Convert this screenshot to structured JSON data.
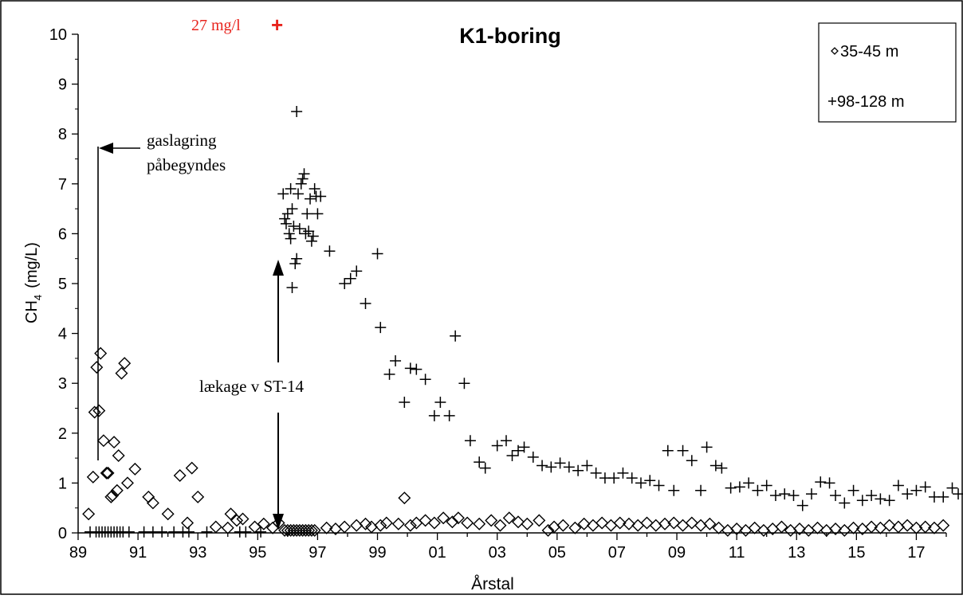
{
  "chart_data": {
    "type": "scatter",
    "title": "K1-boring",
    "xlabel": "Årstal",
    "ylabel_main": "CH",
    "ylabel_sub": "4",
    "ylabel_unit": "(mg/L)",
    "xlim": [
      89,
      118
    ],
    "ylim": [
      0,
      10
    ],
    "x_ticks": [
      89,
      91,
      93,
      95,
      97,
      99,
      101,
      103,
      105,
      107,
      109,
      111,
      113,
      115,
      117
    ],
    "x_tick_labels": [
      "89",
      "91",
      "93",
      "95",
      "97",
      "99",
      "01",
      "03",
      "05",
      "07",
      "09",
      "11",
      "13",
      "15",
      "17"
    ],
    "y_ticks": [
      0,
      1,
      2,
      3,
      4,
      5,
      6,
      7,
      8,
      9,
      10
    ],
    "y_tick_labels": [
      "0",
      "1",
      "2",
      "3",
      "4",
      "5",
      "6",
      "7",
      "8",
      "9",
      "10"
    ],
    "grid": false,
    "legend_position": "top-right",
    "series": [
      {
        "name": "35-45 m",
        "marker": "diamond",
        "points": [
          [
            89.35,
            0.38
          ],
          [
            89.5,
            1.12
          ],
          [
            89.55,
            2.42
          ],
          [
            89.62,
            3.32
          ],
          [
            89.7,
            2.45
          ],
          [
            89.75,
            3.6
          ],
          [
            89.85,
            1.85
          ],
          [
            89.95,
            1.2
          ],
          [
            90.0,
            1.2
          ],
          [
            90.1,
            0.72
          ],
          [
            90.15,
            0.75
          ],
          [
            90.2,
            1.82
          ],
          [
            90.3,
            0.85
          ],
          [
            90.35,
            1.55
          ],
          [
            90.45,
            3.2
          ],
          [
            90.55,
            3.4
          ],
          [
            90.65,
            1.0
          ],
          [
            90.9,
            1.28
          ],
          [
            91.35,
            0.72
          ],
          [
            91.5,
            0.6
          ],
          [
            92.0,
            0.38
          ],
          [
            92.4,
            1.15
          ],
          [
            92.65,
            0.2
          ],
          [
            92.8,
            1.3
          ],
          [
            93.0,
            0.72
          ],
          [
            93.6,
            0.12
          ],
          [
            94.0,
            0.1
          ],
          [
            94.1,
            0.38
          ],
          [
            94.3,
            0.25
          ],
          [
            94.5,
            0.28
          ],
          [
            94.9,
            0.12
          ],
          [
            95.2,
            0.18
          ],
          [
            95.5,
            0.1
          ],
          [
            95.7,
            0.2
          ],
          [
            95.9,
            0.05
          ],
          [
            96.0,
            0.05
          ],
          [
            96.1,
            0.05
          ],
          [
            96.2,
            0.05
          ],
          [
            96.3,
            0.05
          ],
          [
            96.4,
            0.05
          ],
          [
            96.5,
            0.05
          ],
          [
            96.6,
            0.05
          ],
          [
            96.7,
            0.05
          ],
          [
            96.8,
            0.05
          ],
          [
            96.9,
            0.05
          ],
          [
            97.3,
            0.1
          ],
          [
            97.6,
            0.08
          ],
          [
            97.9,
            0.12
          ],
          [
            98.3,
            0.15
          ],
          [
            98.6,
            0.18
          ],
          [
            98.8,
            0.12
          ],
          [
            99.1,
            0.15
          ],
          [
            99.3,
            0.2
          ],
          [
            99.7,
            0.18
          ],
          [
            99.9,
            0.7
          ],
          [
            100.1,
            0.15
          ],
          [
            100.3,
            0.2
          ],
          [
            100.6,
            0.25
          ],
          [
            100.9,
            0.2
          ],
          [
            101.2,
            0.3
          ],
          [
            101.5,
            0.22
          ],
          [
            101.7,
            0.3
          ],
          [
            102.0,
            0.2
          ],
          [
            102.4,
            0.18
          ],
          [
            102.8,
            0.25
          ],
          [
            103.1,
            0.15
          ],
          [
            103.4,
            0.3
          ],
          [
            103.7,
            0.22
          ],
          [
            104.0,
            0.18
          ],
          [
            104.4,
            0.25
          ],
          [
            104.7,
            0.05
          ],
          [
            104.9,
            0.12
          ],
          [
            105.2,
            0.15
          ],
          [
            105.6,
            0.1
          ],
          [
            105.9,
            0.18
          ],
          [
            106.2,
            0.15
          ],
          [
            106.5,
            0.2
          ],
          [
            106.8,
            0.15
          ],
          [
            107.1,
            0.2
          ],
          [
            107.4,
            0.18
          ],
          [
            107.7,
            0.15
          ],
          [
            108.0,
            0.2
          ],
          [
            108.3,
            0.15
          ],
          [
            108.6,
            0.18
          ],
          [
            108.9,
            0.2
          ],
          [
            109.2,
            0.15
          ],
          [
            109.5,
            0.2
          ],
          [
            109.8,
            0.15
          ],
          [
            110.1,
            0.18
          ],
          [
            110.4,
            0.1
          ],
          [
            110.7,
            0.05
          ],
          [
            111.0,
            0.08
          ],
          [
            111.3,
            0.05
          ],
          [
            111.6,
            0.1
          ],
          [
            111.9,
            0.05
          ],
          [
            112.2,
            0.08
          ],
          [
            112.5,
            0.12
          ],
          [
            112.8,
            0.05
          ],
          [
            113.1,
            0.08
          ],
          [
            113.4,
            0.05
          ],
          [
            113.7,
            0.1
          ],
          [
            114.0,
            0.05
          ],
          [
            114.3,
            0.08
          ],
          [
            114.6,
            0.05
          ],
          [
            114.9,
            0.1
          ],
          [
            115.2,
            0.08
          ],
          [
            115.5,
            0.12
          ],
          [
            115.8,
            0.1
          ],
          [
            116.1,
            0.15
          ],
          [
            116.4,
            0.12
          ],
          [
            116.7,
            0.15
          ],
          [
            117.0,
            0.1
          ],
          [
            117.3,
            0.12
          ],
          [
            117.6,
            0.1
          ],
          [
            117.9,
            0.15
          ]
        ]
      },
      {
        "name": "98-128 m",
        "marker": "plus",
        "points": [
          [
            89.4,
            0.02
          ],
          [
            89.6,
            0.02
          ],
          [
            89.7,
            0.02
          ],
          [
            89.8,
            0.02
          ],
          [
            89.9,
            0.02
          ],
          [
            90.0,
            0.02
          ],
          [
            90.1,
            0.02
          ],
          [
            90.2,
            0.02
          ],
          [
            90.3,
            0.02
          ],
          [
            90.4,
            0.02
          ],
          [
            90.5,
            0.02
          ],
          [
            90.7,
            0.02
          ],
          [
            91.2,
            0.02
          ],
          [
            91.5,
            0.02
          ],
          [
            91.8,
            0.02
          ],
          [
            92.2,
            0.02
          ],
          [
            92.5,
            0.02
          ],
          [
            92.7,
            0.02
          ],
          [
            93.3,
            0.02
          ],
          [
            94.4,
            0.02
          ],
          [
            94.6,
            0.02
          ],
          [
            95.1,
            0.02
          ],
          [
            95.85,
            6.8
          ],
          [
            95.9,
            6.3
          ],
          [
            95.95,
            6.2
          ],
          [
            96.0,
            6.4
          ],
          [
            96.05,
            6.0
          ],
          [
            96.1,
            5.9
          ],
          [
            96.1,
            6.9
          ],
          [
            96.15,
            6.5
          ],
          [
            96.15,
            4.92
          ],
          [
            96.2,
            6.15
          ],
          [
            96.25,
            5.4
          ],
          [
            96.3,
            8.45
          ],
          [
            96.3,
            5.5
          ],
          [
            96.35,
            6.8
          ],
          [
            96.4,
            6.1
          ],
          [
            96.45,
            7.0
          ],
          [
            96.5,
            7.1
          ],
          [
            96.55,
            7.2
          ],
          [
            96.6,
            6.0
          ],
          [
            96.65,
            6.4
          ],
          [
            96.7,
            6.05
          ],
          [
            96.75,
            6.7
          ],
          [
            96.8,
            5.85
          ],
          [
            96.85,
            5.95
          ],
          [
            96.9,
            6.9
          ],
          [
            96.95,
            6.75
          ],
          [
            97.0,
            6.4
          ],
          [
            97.1,
            6.75
          ],
          [
            97.4,
            5.65
          ],
          [
            97.9,
            5.0
          ],
          [
            98.1,
            5.1
          ],
          [
            98.3,
            5.25
          ],
          [
            98.6,
            4.6
          ],
          [
            99.0,
            5.6
          ],
          [
            99.1,
            4.12
          ],
          [
            99.4,
            3.18
          ],
          [
            99.6,
            3.45
          ],
          [
            99.9,
            2.62
          ],
          [
            100.1,
            3.3
          ],
          [
            100.3,
            3.28
          ],
          [
            100.6,
            3.08
          ],
          [
            100.9,
            2.35
          ],
          [
            101.1,
            2.62
          ],
          [
            101.4,
            2.35
          ],
          [
            101.6,
            3.95
          ],
          [
            101.9,
            3.0
          ],
          [
            102.1,
            1.85
          ],
          [
            102.4,
            1.42
          ],
          [
            102.6,
            1.3
          ],
          [
            103.0,
            1.75
          ],
          [
            103.3,
            1.85
          ],
          [
            103.5,
            1.55
          ],
          [
            103.7,
            1.65
          ],
          [
            103.9,
            1.72
          ],
          [
            104.2,
            1.52
          ],
          [
            104.5,
            1.35
          ],
          [
            104.8,
            1.32
          ],
          [
            105.1,
            1.4
          ],
          [
            105.4,
            1.32
          ],
          [
            105.7,
            1.25
          ],
          [
            106.0,
            1.35
          ],
          [
            106.3,
            1.2
          ],
          [
            106.6,
            1.1
          ],
          [
            106.9,
            1.1
          ],
          [
            107.2,
            1.2
          ],
          [
            107.5,
            1.1
          ],
          [
            107.8,
            1.0
          ],
          [
            108.1,
            1.05
          ],
          [
            108.4,
            0.95
          ],
          [
            108.7,
            1.65
          ],
          [
            108.9,
            0.85
          ],
          [
            109.2,
            1.65
          ],
          [
            109.5,
            1.45
          ],
          [
            109.8,
            0.85
          ],
          [
            110.0,
            1.72
          ],
          [
            110.3,
            1.35
          ],
          [
            110.5,
            1.3
          ],
          [
            110.8,
            0.9
          ],
          [
            111.1,
            0.92
          ],
          [
            111.4,
            1.0
          ],
          [
            111.7,
            0.85
          ],
          [
            112.0,
            0.95
          ],
          [
            112.3,
            0.75
          ],
          [
            112.6,
            0.78
          ],
          [
            112.9,
            0.75
          ],
          [
            113.2,
            0.55
          ],
          [
            113.5,
            0.78
          ],
          [
            113.8,
            1.02
          ],
          [
            114.1,
            1.0
          ],
          [
            114.3,
            0.75
          ],
          [
            114.6,
            0.6
          ],
          [
            114.9,
            0.85
          ],
          [
            115.2,
            0.65
          ],
          [
            115.5,
            0.75
          ],
          [
            115.8,
            0.68
          ],
          [
            116.1,
            0.65
          ],
          [
            116.4,
            0.95
          ],
          [
            116.7,
            0.78
          ],
          [
            117.0,
            0.85
          ],
          [
            117.3,
            0.92
          ],
          [
            117.6,
            0.72
          ],
          [
            117.9,
            0.72
          ],
          [
            118.2,
            0.9
          ],
          [
            118.4,
            0.78
          ]
        ]
      }
    ],
    "annotations": {
      "offscale_label": "27 mg/l",
      "offscale_marker": "+",
      "gas_storage_line1": "gaslagring",
      "gas_storage_line2": "påbegyndes",
      "leak_label": "lækage v ST-14"
    },
    "colors": {
      "offscale": "#e8231c",
      "ink": "#000000",
      "background": "#ffffff"
    }
  }
}
